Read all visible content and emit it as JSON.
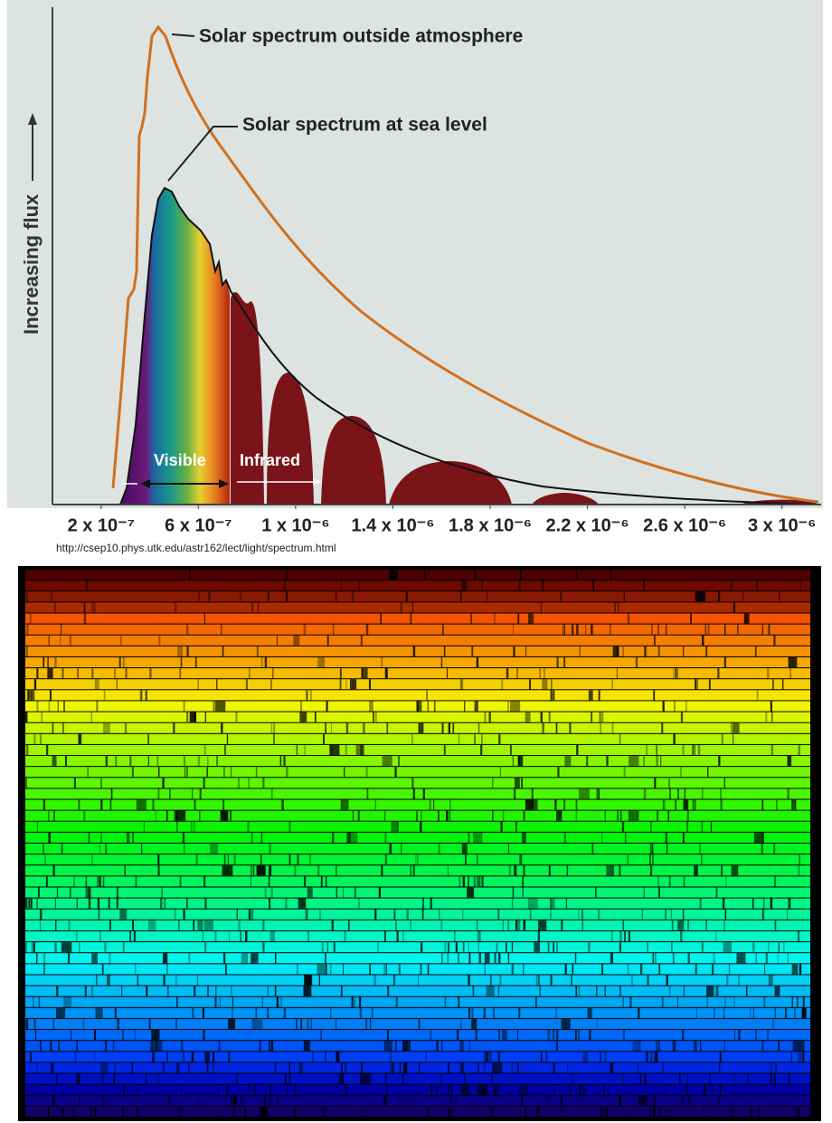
{
  "chart_data": {
    "type": "area",
    "y_label": "Increasing flux",
    "xlim": [
      0,
      3.15e-06
    ],
    "xticks": [
      {
        "value": 2e-07,
        "label": "2 x 10⁻⁷"
      },
      {
        "value": 6e-07,
        "label": "6 x 10⁻⁷"
      },
      {
        "value": 1e-06,
        "label": "1 x 10⁻⁶"
      },
      {
        "value": 1.4e-06,
        "label": "1.4 x 10⁻⁶"
      },
      {
        "value": 1.8e-06,
        "label": "1.8 x 10⁻⁶"
      },
      {
        "value": 2.2e-06,
        "label": "2.2 x 10⁻⁶"
      },
      {
        "value": 2.6e-06,
        "label": "2.6 x 10⁻⁶"
      },
      {
        "value": 3e-06,
        "label": "3 x 10⁻⁶"
      }
    ],
    "annotations": [
      "Solar spectrum outside atmosphere",
      "Solar spectrum at sea level",
      "Visible",
      "Infrared"
    ],
    "source": "http://csep10.phys.utk.edu/astr162/lect/light/spectrum.html"
  }
}
